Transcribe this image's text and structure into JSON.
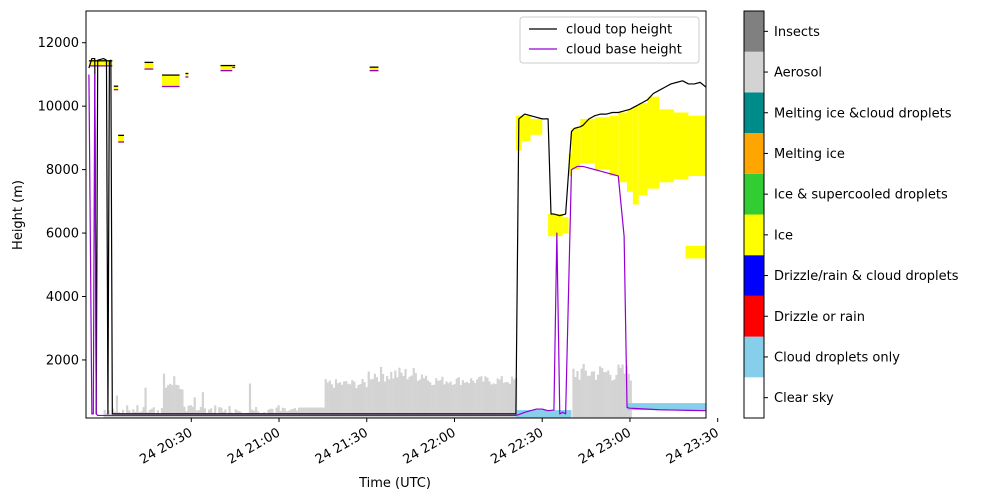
{
  "chart_data": {
    "type": "heatmap",
    "xlabel": "Time (UTC)",
    "ylabel": "Height (m)",
    "xlim": [
      "2024-..-24 20:24",
      "2024-..-24 23:56"
    ],
    "x_ticks": [
      "24 20:30",
      "24 21:00",
      "24 21:30",
      "24 22:00",
      "24 22:30",
      "24 23:00",
      "24 23:30"
    ],
    "x_ticks_minutes": [
      30,
      60,
      90,
      120,
      150,
      180,
      210
    ],
    "xlim_minutes": [
      -6,
      206
    ],
    "ylim": [
      170,
      13000
    ],
    "y_ticks": [
      2000,
      4000,
      6000,
      8000,
      10000,
      12000
    ],
    "legend": {
      "placement": "top-right",
      "entries": [
        {
          "label": "cloud top height",
          "color": "#000000"
        },
        {
          "label": "cloud base height",
          "color": "#9400d3"
        }
      ]
    },
    "colorbar": {
      "placement": "right",
      "classes": [
        {
          "label": "Clear sky",
          "color": "#ffffff"
        },
        {
          "label": "Cloud droplets only",
          "color": "#87ceeb"
        },
        {
          "label": "Drizzle or rain",
          "color": "#ff0000"
        },
        {
          "label": "Drizzle/rain & cloud droplets",
          "color": "#0000ff"
        },
        {
          "label": "Ice",
          "color": "#ffff00"
        },
        {
          "label": "Ice & supercooled droplets",
          "color": "#32cd32"
        },
        {
          "label": "Melting ice",
          "color": "#ffa500"
        },
        {
          "label": "Melting ice &cloud droplets",
          "color": "#008b8b"
        },
        {
          "label": "Aerosol",
          "color": "#d3d3d3"
        },
        {
          "label": "Insects",
          "color": "#808080"
        }
      ]
    },
    "series": [
      {
        "name": "cloud top height",
        "color": "#000000",
        "x_minutes": [
          -5,
          -4,
          -3,
          -2.5,
          -2,
          0,
          1,
          1.5,
          2,
          2.5,
          3,
          141,
          142,
          144,
          146,
          150,
          152,
          153,
          154,
          156,
          158,
          160,
          161,
          163,
          164,
          165,
          166,
          168,
          170,
          172,
          174,
          176,
          178,
          180,
          182,
          184,
          186,
          188,
          190,
          192,
          194,
          196,
          198,
          200,
          202,
          204,
          206
        ],
        "values": [
          11200,
          11500,
          11500,
          300,
          11450,
          11500,
          11450,
          300,
          11400,
          11450,
          300,
          300,
          9600,
          9750,
          9700,
          9600,
          9600,
          6600,
          6600,
          6550,
          6600,
          9200,
          9300,
          9350,
          9400,
          9500,
          9600,
          9700,
          9750,
          9750,
          9800,
          9800,
          9850,
          9900,
          10000,
          10100,
          10200,
          10400,
          10500,
          10600,
          10700,
          10750,
          10800,
          10700,
          10700,
          10750,
          10600
        ]
      },
      {
        "name": "cloud base height",
        "color": "#9400d3",
        "x_minutes": [
          -5,
          -4,
          -3.5,
          -3,
          -2.5,
          -2,
          -1,
          0,
          1,
          2,
          3,
          141,
          142,
          144,
          146,
          148,
          150,
          152,
          154,
          155,
          156,
          157,
          158,
          160,
          162,
          164,
          166,
          168,
          170,
          172,
          174,
          176,
          178,
          179,
          180,
          182,
          186,
          190,
          195,
          200,
          206
        ],
        "values": [
          11000,
          300,
          300,
          11000,
          300,
          250,
          250,
          250,
          250,
          250,
          250,
          250,
          280,
          350,
          400,
          450,
          450,
          400,
          420,
          6000,
          300,
          350,
          300,
          8000,
          8100,
          8100,
          8050,
          8000,
          7950,
          7900,
          7850,
          7800,
          5900,
          500,
          480,
          470,
          450,
          430,
          420,
          410,
          400
        ]
      }
    ]
  }
}
